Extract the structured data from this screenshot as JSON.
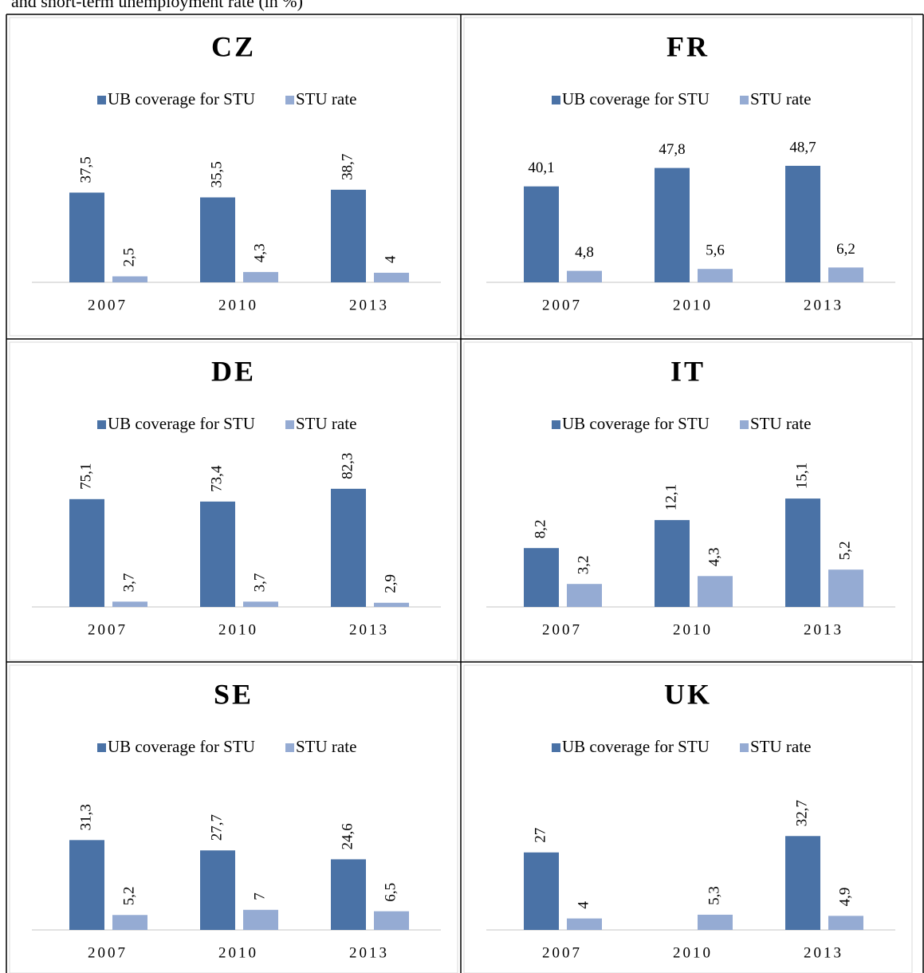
{
  "caption": "and short-term unemployment rate (in %)",
  "chart_data": [
    {
      "type": "bar",
      "title": "CZ",
      "categories": [
        "2007",
        "2010",
        "2013"
      ],
      "ylim": [
        0,
        60
      ],
      "label_rotation": -90,
      "series": [
        {
          "name": "UB coverage for STU",
          "color": "#4a72a6",
          "values": [
            37.5,
            35.5,
            38.7
          ],
          "value_labels": [
            "37,5",
            "35,5",
            "38,7"
          ]
        },
        {
          "name": "STU rate",
          "color": "#95abd3",
          "values": [
            2.5,
            4.3,
            4
          ],
          "value_labels": [
            "2,5",
            "4,3",
            "4"
          ]
        }
      ]
    },
    {
      "type": "bar",
      "title": "FR",
      "categories": [
        "2007",
        "2010",
        "2013"
      ],
      "ylim": [
        0,
        60
      ],
      "label_rotation": 0,
      "series": [
        {
          "name": "UB coverage for STU",
          "color": "#4a72a6",
          "values": [
            40.1,
            47.8,
            48.7
          ],
          "value_labels": [
            "40,1",
            "47,8",
            "48,7"
          ]
        },
        {
          "name": "STU rate",
          "color": "#95abd3",
          "values": [
            4.8,
            5.6,
            6.2
          ],
          "value_labels": [
            "4,8",
            "5,6",
            "6,2"
          ]
        }
      ]
    },
    {
      "type": "bar",
      "title": "DE",
      "categories": [
        "2007",
        "2010",
        "2013"
      ],
      "ylim": [
        0,
        100
      ],
      "label_rotation": -90,
      "series": [
        {
          "name": "UB coverage for STU",
          "color": "#4a72a6",
          "values": [
            75.1,
            73.4,
            82.3
          ],
          "value_labels": [
            "75,1",
            "73,4",
            "82,3"
          ]
        },
        {
          "name": "STU rate",
          "color": "#95abd3",
          "values": [
            3.7,
            3.7,
            2.9
          ],
          "value_labels": [
            "3,7",
            "3,7",
            "2,9"
          ]
        }
      ]
    },
    {
      "type": "bar",
      "title": "IT",
      "categories": [
        "2007",
        "2010",
        "2013"
      ],
      "ylim": [
        0,
        20
      ],
      "label_rotation": -90,
      "series": [
        {
          "name": "UB coverage for STU",
          "color": "#4a72a6",
          "values": [
            8.2,
            12.1,
            15.1
          ],
          "value_labels": [
            "8,2",
            "12,1",
            "15,1"
          ]
        },
        {
          "name": "STU rate",
          "color": "#95abd3",
          "values": [
            3.2,
            4.3,
            5.2
          ],
          "value_labels": [
            "3,2",
            "4,3",
            "5,2"
          ]
        }
      ]
    },
    {
      "type": "bar",
      "title": "SE",
      "categories": [
        "2007",
        "2010",
        "2013"
      ],
      "ylim": [
        0,
        50
      ],
      "label_rotation": -90,
      "series": [
        {
          "name": "UB coverage for STU",
          "color": "#4a72a6",
          "values": [
            31.3,
            27.7,
            24.6
          ],
          "value_labels": [
            "31,3",
            "27,7",
            "24,6"
          ]
        },
        {
          "name": "STU rate",
          "color": "#95abd3",
          "values": [
            5.2,
            7,
            6.5
          ],
          "value_labels": [
            "5,2",
            "7",
            "6,5"
          ]
        }
      ]
    },
    {
      "type": "bar",
      "title": "UK",
      "categories": [
        "2007",
        "2010",
        "2013"
      ],
      "ylim": [
        0,
        50
      ],
      "label_rotation": -90,
      "series": [
        {
          "name": "UB coverage for STU",
          "color": "#4a72a6",
          "values": [
            27,
            null,
            32.7
          ],
          "value_labels": [
            "27",
            null,
            "32,7"
          ]
        },
        {
          "name": "STU rate",
          "color": "#95abd3",
          "values": [
            4,
            5.3,
            4.9
          ],
          "value_labels": [
            "4",
            "5,3",
            "4,9"
          ]
        }
      ]
    }
  ]
}
